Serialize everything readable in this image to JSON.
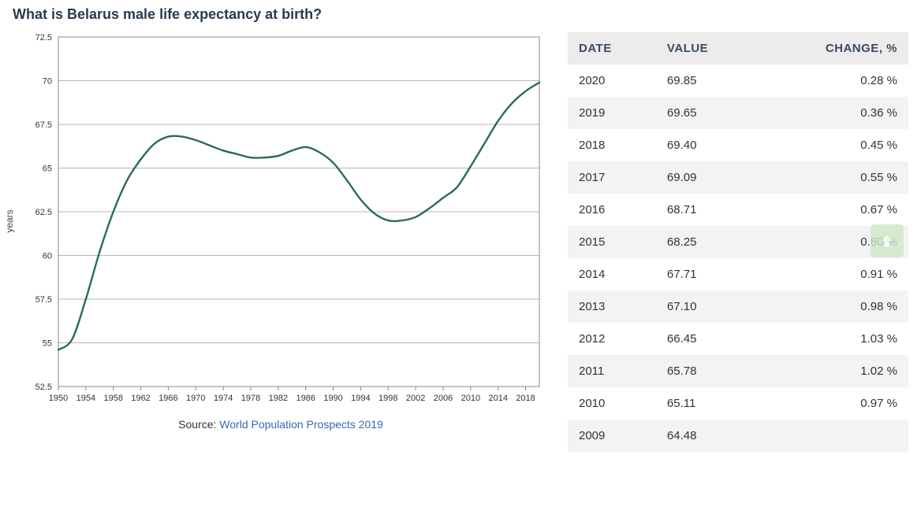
{
  "title": "What is Belarus male life expectancy at birth?",
  "chart": {
    "type": "line",
    "ylabel": "years",
    "ylim": [
      52.5,
      72.5
    ],
    "ytick_step": 2.5,
    "xlim": [
      1950,
      2020
    ],
    "xtick_step": 4,
    "line_color": "#2b6b57",
    "line_width": 2.4,
    "grid_color": "#b7b7b7",
    "border_color": "#888888",
    "background_color": "#ffffff",
    "axis_label_fontsize": 12,
    "tick_fontsize": 11,
    "tick_color": "#333333",
    "series": [
      {
        "x": 1950,
        "y": 54.6
      },
      {
        "x": 1952,
        "y": 55.2
      },
      {
        "x": 1954,
        "y": 57.5
      },
      {
        "x": 1956,
        "y": 60.2
      },
      {
        "x": 1958,
        "y": 62.5
      },
      {
        "x": 1960,
        "y": 64.3
      },
      {
        "x": 1962,
        "y": 65.5
      },
      {
        "x": 1964,
        "y": 66.4
      },
      {
        "x": 1966,
        "y": 66.8
      },
      {
        "x": 1968,
        "y": 66.8
      },
      {
        "x": 1970,
        "y": 66.6
      },
      {
        "x": 1972,
        "y": 66.3
      },
      {
        "x": 1974,
        "y": 66.0
      },
      {
        "x": 1976,
        "y": 65.8
      },
      {
        "x": 1978,
        "y": 65.6
      },
      {
        "x": 1980,
        "y": 65.6
      },
      {
        "x": 1982,
        "y": 65.7
      },
      {
        "x": 1984,
        "y": 66.0
      },
      {
        "x": 1986,
        "y": 66.2
      },
      {
        "x": 1988,
        "y": 65.9
      },
      {
        "x": 1990,
        "y": 65.3
      },
      {
        "x": 1992,
        "y": 64.3
      },
      {
        "x": 1994,
        "y": 63.2
      },
      {
        "x": 1996,
        "y": 62.4
      },
      {
        "x": 1998,
        "y": 62.0
      },
      {
        "x": 2000,
        "y": 62.0
      },
      {
        "x": 2002,
        "y": 62.2
      },
      {
        "x": 2004,
        "y": 62.7
      },
      {
        "x": 2006,
        "y": 63.3
      },
      {
        "x": 2008,
        "y": 63.9
      },
      {
        "x": 2010,
        "y": 65.1
      },
      {
        "x": 2012,
        "y": 66.4
      },
      {
        "x": 2014,
        "y": 67.7
      },
      {
        "x": 2016,
        "y": 68.7
      },
      {
        "x": 2018,
        "y": 69.4
      },
      {
        "x": 2020,
        "y": 69.9
      }
    ]
  },
  "source": {
    "label": "Source:",
    "link_text": "World Population Prospects 2019"
  },
  "table": {
    "columns": [
      "DATE",
      "VALUE",
      "CHANGE, %"
    ],
    "rows": [
      {
        "date": "2020",
        "value": "69.85",
        "change": "0.28 %"
      },
      {
        "date": "2019",
        "value": "69.65",
        "change": "0.36 %"
      },
      {
        "date": "2018",
        "value": "69.40",
        "change": "0.45 %"
      },
      {
        "date": "2017",
        "value": "69.09",
        "change": "0.55 %"
      },
      {
        "date": "2016",
        "value": "68.71",
        "change": "0.67 %"
      },
      {
        "date": "2015",
        "value": "68.25",
        "change": "0.80 %"
      },
      {
        "date": "2014",
        "value": "67.71",
        "change": "0.91 %"
      },
      {
        "date": "2013",
        "value": "67.10",
        "change": "0.98 %"
      },
      {
        "date": "2012",
        "value": "66.45",
        "change": "1.03 %"
      },
      {
        "date": "2011",
        "value": "65.78",
        "change": "1.02 %"
      },
      {
        "date": "2010",
        "value": "65.11",
        "change": "0.97 %"
      },
      {
        "date": "2009",
        "value": "64.48",
        "change": ""
      }
    ]
  }
}
